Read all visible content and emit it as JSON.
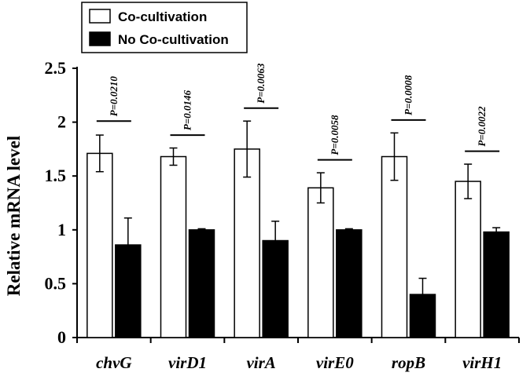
{
  "chart_data": {
    "type": "bar",
    "title": "",
    "xlabel": "",
    "ylabel": "Relative mRNA level",
    "ylim": [
      0,
      2.5
    ],
    "yticks": [
      "0",
      "0.5",
      "1",
      "1.5",
      "2",
      "2.5"
    ],
    "categories": [
      "chvG",
      "virD1",
      "virA",
      "virE0",
      "ropB",
      "virH1"
    ],
    "series": [
      {
        "name": "Co-cultivation",
        "fill": "#ffffff",
        "values": [
          1.71,
          1.68,
          1.75,
          1.39,
          1.68,
          1.45
        ],
        "errors": [
          0.17,
          0.08,
          0.26,
          0.14,
          0.22,
          0.16
        ]
      },
      {
        "name": "No Co-cultivation",
        "fill": "#000000",
        "values": [
          0.86,
          1.0,
          0.9,
          1.0,
          0.4,
          0.98
        ],
        "errors": [
          0.25,
          0.01,
          0.18,
          0.01,
          0.15,
          0.04
        ]
      }
    ],
    "annotations": [
      {
        "category": "chvG",
        "text": "P=0.0210",
        "bracket_y": 2.01
      },
      {
        "category": "virD1",
        "text": "P=0.0146",
        "bracket_y": 1.88
      },
      {
        "category": "virA",
        "text": "P=0.0063",
        "bracket_y": 2.13
      },
      {
        "category": "virE0",
        "text": "P=0.0058",
        "bracket_y": 1.65
      },
      {
        "category": "ropB",
        "text": "P=0.0008",
        "bracket_y": 2.02
      },
      {
        "category": "virH1",
        "text": "P=0.0022",
        "bracket_y": 1.73
      }
    ],
    "legend": {
      "position": "top-left"
    }
  }
}
